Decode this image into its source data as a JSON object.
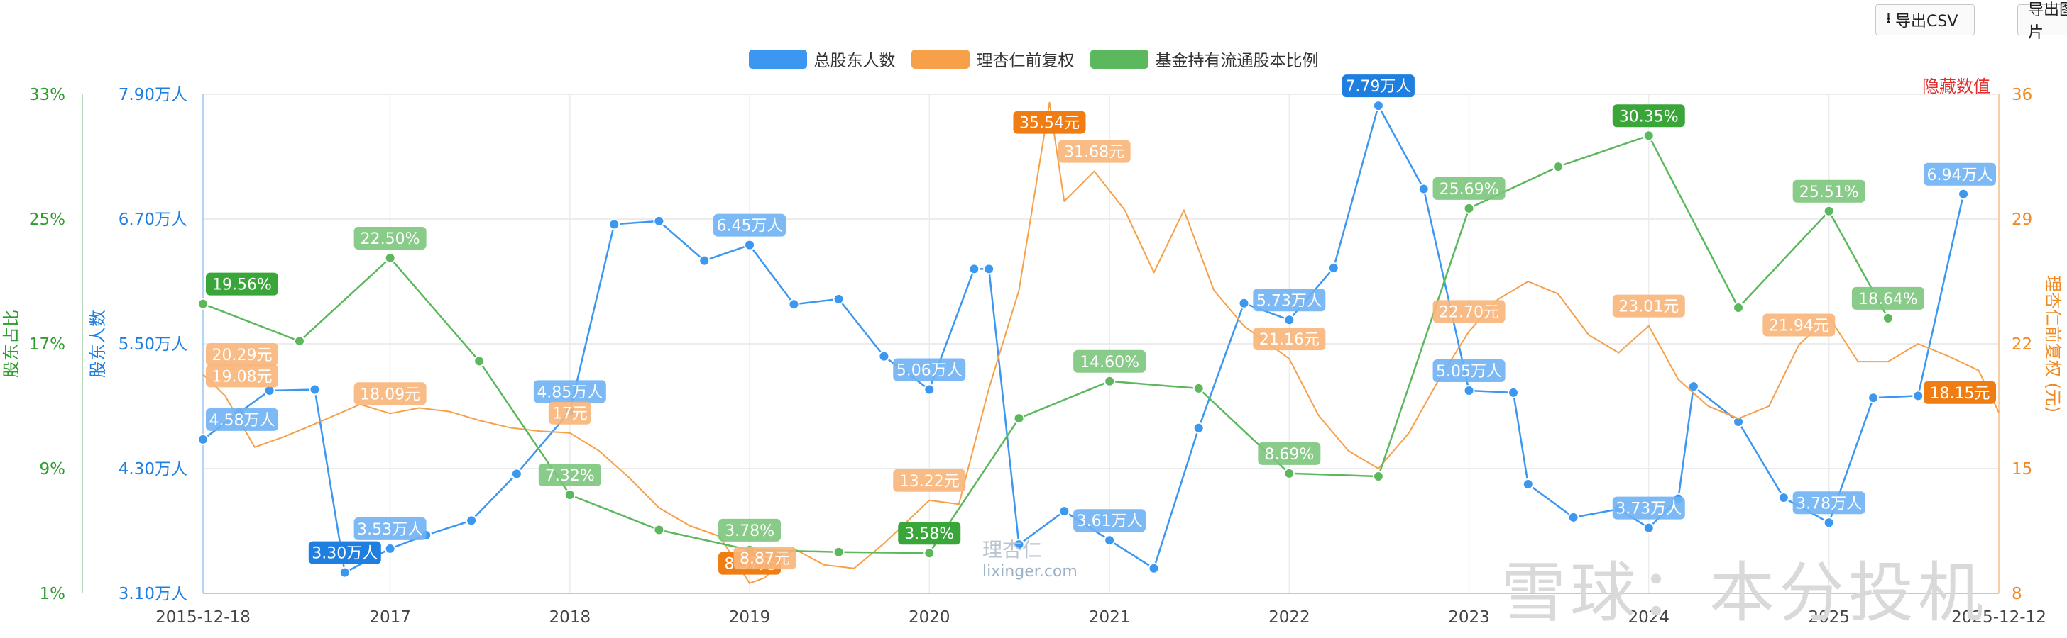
{
  "toolbar": {
    "csv_label": "导出CSV",
    "csv_icon": "download-icon",
    "img_label": "导出图片"
  },
  "hide_label": "隐藏数值",
  "watermark": {
    "main": "雪球：本分投机",
    "logo_text": "理杏仁",
    "logo_url": "lixinger.com"
  },
  "chart_data": {
    "type": "line",
    "title": "",
    "x_ticks": [
      "2015-12-18",
      "2017",
      "2018",
      "2019",
      "2020",
      "2021",
      "2022",
      "2023",
      "2024",
      "2025",
      "2025-12-12"
    ],
    "x_range": [
      "2015-12-18",
      "2025-12-12"
    ],
    "axes": {
      "left_outer": {
        "label": "股东占比",
        "ticks": [
          "33%",
          "25%",
          "17%",
          "9%",
          "1%"
        ],
        "range": [
          1,
          33
        ],
        "color": "#2e9e2e"
      },
      "left_inner": {
        "label": "股东人数",
        "ticks": [
          "7.90万人",
          "6.70万人",
          "5.50万人",
          "4.30万人",
          "3.10万人"
        ],
        "range": [
          3.1,
          7.9
        ],
        "color": "#1e7fe0"
      },
      "right": {
        "label": "理杏仁前复权 (元)",
        "ticks": [
          "36",
          "29",
          "22",
          "15",
          "8"
        ],
        "range": [
          8,
          36
        ],
        "color": "#f08a24"
      }
    },
    "series": [
      {
        "name": "总股东人数",
        "color": "#3b97f0",
        "unit": "万人",
        "points": [
          [
            "2015-12-18",
            4.58
          ],
          [
            "2016-03-01",
            4.84
          ],
          [
            "2016-05-01",
            5.05
          ],
          [
            "2016-08-01",
            5.06
          ],
          [
            "2016-10-01",
            3.3
          ],
          [
            "2017-01-01",
            3.53
          ],
          [
            "2017-03-15",
            3.66
          ],
          [
            "2017-06-15",
            3.8
          ],
          [
            "2017-09-15",
            4.25
          ],
          [
            "2018-01-01",
            4.85
          ],
          [
            "2018-04-01",
            6.65
          ],
          [
            "2018-07-01",
            6.68
          ],
          [
            "2018-10-01",
            6.3
          ],
          [
            "2019-01-01",
            6.45
          ],
          [
            "2019-04-01",
            5.88
          ],
          [
            "2019-07-01",
            5.93
          ],
          [
            "2019-10-01",
            5.38
          ],
          [
            "2020-01-01",
            5.06
          ],
          [
            "2020-04-01",
            6.22
          ],
          [
            "2020-05-01",
            6.22
          ],
          [
            "2020-07-01",
            3.57
          ],
          [
            "2020-10-01",
            3.89
          ],
          [
            "2021-01-01",
            3.61
          ],
          [
            "2021-04-01",
            3.34
          ],
          [
            "2021-07-01",
            4.69
          ],
          [
            "2021-10-01",
            5.89
          ],
          [
            "2022-01-01",
            5.73
          ],
          [
            "2022-04-01",
            6.23
          ],
          [
            "2022-07-01",
            7.79
          ],
          [
            "2022-10-01",
            6.99
          ],
          [
            "2023-01-01",
            5.05
          ],
          [
            "2023-04-01",
            5.03
          ],
          [
            "2023-05-01",
            4.15
          ],
          [
            "2023-08-01",
            3.83
          ],
          [
            "2023-11-01",
            3.91
          ],
          [
            "2024-01-01",
            3.73
          ],
          [
            "2024-03-01",
            4.01
          ],
          [
            "2024-04-01",
            5.09
          ],
          [
            "2024-07-01",
            4.75
          ],
          [
            "2024-10-01",
            4.02
          ],
          [
            "2025-01-01",
            3.78
          ],
          [
            "2025-04-01",
            4.98
          ],
          [
            "2025-07-01",
            5.0
          ],
          [
            "2025-10-01",
            6.94
          ]
        ],
        "labels": [
          [
            "2015-12-18",
            4.58,
            "4.58万人"
          ],
          [
            "2016-10-01",
            3.3,
            "3.30万人"
          ],
          [
            "2017-01-01",
            3.53,
            "3.53万人"
          ],
          [
            "2018-01-01",
            4.85,
            "4.85万人"
          ],
          [
            "2019-01-01",
            6.45,
            "6.45万人"
          ],
          [
            "2020-01-01",
            5.06,
            "5.06万人"
          ],
          [
            "2021-01-01",
            3.61,
            "3.61万人"
          ],
          [
            "2022-01-01",
            5.73,
            "5.73万人"
          ],
          [
            "2022-07-01",
            7.79,
            "7.79万人"
          ],
          [
            "2023-01-01",
            5.05,
            "5.05万人"
          ],
          [
            "2024-01-01",
            3.73,
            "3.73万人"
          ],
          [
            "2025-01-01",
            3.78,
            "3.78万人"
          ],
          [
            "2025-10-01",
            6.94,
            "6.94万人"
          ]
        ],
        "highlight": [
          "3.30万人",
          "7.79万人"
        ]
      },
      {
        "name": "理杏仁前复权",
        "color": "#f7a04a",
        "unit": "元",
        "points": [
          [
            "2015-12-18",
            20.29
          ],
          [
            "2016-02-01",
            19.08
          ],
          [
            "2016-04-01",
            16.2
          ],
          [
            "2016-06-01",
            16.8
          ],
          [
            "2016-08-01",
            17.5
          ],
          [
            "2016-11-01",
            18.6
          ],
          [
            "2017-01-01",
            18.09
          ],
          [
            "2017-03-01",
            18.4
          ],
          [
            "2017-05-01",
            18.2
          ],
          [
            "2017-07-01",
            17.7
          ],
          [
            "2017-09-01",
            17.3
          ],
          [
            "2017-11-01",
            17.1
          ],
          [
            "2018-01-01",
            17.0
          ],
          [
            "2018-03-01",
            16.0
          ],
          [
            "2018-05-01",
            14.5
          ],
          [
            "2018-07-01",
            12.8
          ],
          [
            "2018-09-01",
            11.8
          ],
          [
            "2018-11-01",
            11.2
          ],
          [
            "2019-01-01",
            8.57
          ],
          [
            "2019-02-01",
            8.87
          ],
          [
            "2019-04-01",
            10.5
          ],
          [
            "2019-06-01",
            9.6
          ],
          [
            "2019-08-01",
            9.4
          ],
          [
            "2019-10-01",
            10.8
          ],
          [
            "2020-01-01",
            13.22
          ],
          [
            "2020-03-01",
            13.0
          ],
          [
            "2020-05-01",
            19.5
          ],
          [
            "2020-07-01",
            25.0
          ],
          [
            "2020-09-01",
            35.54
          ],
          [
            "2020-10-01",
            30.0
          ],
          [
            "2020-12-01",
            31.68
          ],
          [
            "2021-02-01",
            29.5
          ],
          [
            "2021-04-01",
            26.0
          ],
          [
            "2021-06-01",
            29.5
          ],
          [
            "2021-08-01",
            25.0
          ],
          [
            "2021-10-01",
            23.0
          ],
          [
            "2022-01-01",
            21.16
          ],
          [
            "2022-03-01",
            18.0
          ],
          [
            "2022-05-01",
            16.0
          ],
          [
            "2022-07-01",
            15.0
          ],
          [
            "2022-09-01",
            17.0
          ],
          [
            "2022-11-01",
            20.0
          ],
          [
            "2023-01-01",
            22.7
          ],
          [
            "2023-03-01",
            24.5
          ],
          [
            "2023-05-01",
            25.5
          ],
          [
            "2023-07-01",
            24.8
          ],
          [
            "2023-09-01",
            22.5
          ],
          [
            "2023-11-01",
            21.5
          ],
          [
            "2024-01-01",
            23.01
          ],
          [
            "2024-03-01",
            20.0
          ],
          [
            "2024-05-01",
            18.5
          ],
          [
            "2024-07-01",
            17.8
          ],
          [
            "2024-09-01",
            18.5
          ],
          [
            "2024-11-01",
            21.94
          ],
          [
            "2025-01-01",
            23.5
          ],
          [
            "2025-03-01",
            21.0
          ],
          [
            "2025-05-01",
            21.0
          ],
          [
            "2025-07-01",
            22.0
          ],
          [
            "2025-09-01",
            21.3
          ],
          [
            "2025-11-01",
            20.5
          ],
          [
            "2025-12-12",
            18.15
          ]
        ],
        "labels": [
          [
            "2015-12-18",
            20.29,
            "20.29元"
          ],
          [
            "2016-02-01",
            19.08,
            "19.08元"
          ],
          [
            "2017-01-01",
            18.09,
            "18.09元"
          ],
          [
            "2018-01-01",
            17.0,
            "17元"
          ],
          [
            "2019-01-01",
            8.57,
            "8.57元"
          ],
          [
            "2019-02-01",
            8.87,
            "8.87元"
          ],
          [
            "2020-01-01",
            13.22,
            "13.22元"
          ],
          [
            "2020-09-01",
            35.54,
            "35.54元"
          ],
          [
            "2020-12-01",
            31.68,
            "31.68元"
          ],
          [
            "2022-01-01",
            21.16,
            "21.16元"
          ],
          [
            "2023-01-01",
            22.7,
            "22.70元"
          ],
          [
            "2024-01-01",
            23.01,
            "23.01元"
          ],
          [
            "2024-11-01",
            21.94,
            "21.94元"
          ],
          [
            "2025-12-12",
            18.15,
            "18.15元"
          ]
        ],
        "highlight": [
          "8.57元",
          "35.54元",
          "18.15元"
        ]
      },
      {
        "name": "基金持有流通股本比例",
        "color": "#5cb85c",
        "unit": "%",
        "points": [
          [
            "2015-12-18",
            19.56
          ],
          [
            "2016-07-01",
            17.17
          ],
          [
            "2017-01-01",
            22.5
          ],
          [
            "2017-07-01",
            15.89
          ],
          [
            "2018-01-01",
            7.32
          ],
          [
            "2018-07-01",
            5.07
          ],
          [
            "2019-01-01",
            3.78
          ],
          [
            "2019-07-01",
            3.65
          ],
          [
            "2020-01-01",
            3.58
          ],
          [
            "2020-07-01",
            12.22
          ],
          [
            "2021-01-01",
            14.6
          ],
          [
            "2021-07-01",
            14.14
          ],
          [
            "2022-01-01",
            8.69
          ],
          [
            "2022-07-01",
            8.5
          ],
          [
            "2023-01-01",
            25.69
          ],
          [
            "2023-07-01",
            28.36
          ],
          [
            "2024-01-01",
            30.35
          ],
          [
            "2024-07-01",
            19.32
          ],
          [
            "2025-01-01",
            25.51
          ],
          [
            "2025-05-01",
            18.64
          ]
        ],
        "labels": [
          [
            "2015-12-18",
            19.56,
            "19.56%"
          ],
          [
            "2017-01-01",
            22.5,
            "22.50%"
          ],
          [
            "2018-01-01",
            7.32,
            "7.32%"
          ],
          [
            "2019-01-01",
            3.78,
            "3.78%"
          ],
          [
            "2020-01-01",
            3.58,
            "3.58%"
          ],
          [
            "2021-01-01",
            14.6,
            "14.60%"
          ],
          [
            "2022-01-01",
            8.69,
            "8.69%"
          ],
          [
            "2023-01-01",
            25.69,
            "25.69%"
          ],
          [
            "2024-01-01",
            30.35,
            "30.35%"
          ],
          [
            "2025-01-01",
            25.51,
            "25.51%"
          ],
          [
            "2025-05-01",
            18.64,
            "18.64%"
          ]
        ],
        "highlight": [
          "19.56%",
          "3.58%",
          "30.35%"
        ]
      }
    ],
    "grid": true,
    "legend_position": "top-center"
  }
}
